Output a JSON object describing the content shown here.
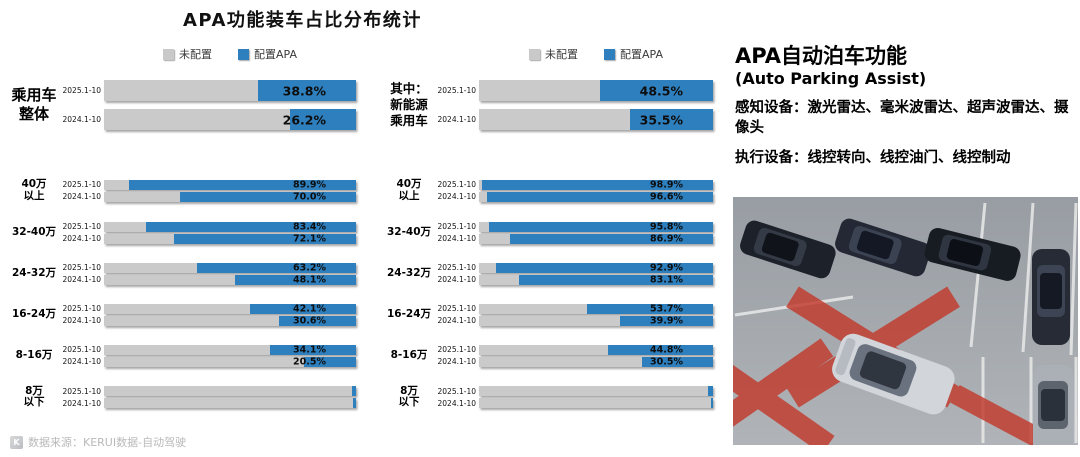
{
  "title": "APA功能装车占比分布统计",
  "colors": {
    "apa_blue": "#2e7fbe",
    "not_equipped_gray": "#c9c9c9"
  },
  "info_panel": {
    "title": "APA自动泊车功能",
    "subtitle": "(Auto Parking Assist)",
    "perception": "感知设备：激光雷达、毫米波雷达、超声波雷达、摄像头",
    "actuation": "执行设备：线控转向、线控油门、线控制动"
  },
  "footer": {
    "source": "数据来源：KERUI数据-自动驾驶",
    "logo": "K"
  },
  "chart_data": [
    {
      "type": "bar",
      "orientation": "horizontal-stacked",
      "unit": "%",
      "x_range": [
        0,
        100
      ],
      "legend": [
        "未配置",
        "配置APA"
      ],
      "overall": {
        "label": "乘用车整体",
        "label_lines": [
          "乘用车",
          "整体"
        ],
        "rows": [
          {
            "period": "2025.1-10",
            "value": 38.8,
            "label": "38.8%"
          },
          {
            "period": "2024.1-10",
            "value": 26.2,
            "label": "26.2%"
          }
        ]
      },
      "segments": [
        {
          "label": "40万以上",
          "label_lines": [
            "40万",
            "以上"
          ],
          "rows": [
            {
              "period": "2025.1-10",
              "value": 89.9,
              "label": "89.9%"
            },
            {
              "period": "2024.1-10",
              "value": 70.0,
              "label": "70.0%"
            }
          ]
        },
        {
          "label": "32-40万",
          "label_lines": [
            "32-40万"
          ],
          "rows": [
            {
              "period": "2025.1-10",
              "value": 83.4,
              "label": "83.4%"
            },
            {
              "period": "2024.1-10",
              "value": 72.1,
              "label": "72.1%"
            }
          ]
        },
        {
          "label": "24-32万",
          "label_lines": [
            "24-32万"
          ],
          "rows": [
            {
              "period": "2025.1-10",
              "value": 63.2,
              "label": "63.2%"
            },
            {
              "period": "2024.1-10",
              "value": 48.1,
              "label": "48.1%"
            }
          ]
        },
        {
          "label": "16-24万",
          "label_lines": [
            "16-24万"
          ],
          "rows": [
            {
              "period": "2025.1-10",
              "value": 42.1,
              "label": "42.1%"
            },
            {
              "period": "2024.1-10",
              "value": 30.6,
              "label": "30.6%"
            }
          ]
        },
        {
          "label": "8-16万",
          "label_lines": [
            "8-16万"
          ],
          "rows": [
            {
              "period": "2025.1-10",
              "value": 34.1,
              "label": "34.1%"
            },
            {
              "period": "2024.1-10",
              "value": 20.5,
              "label": "20.5%"
            }
          ]
        },
        {
          "label": "8万以下",
          "label_lines": [
            "8万",
            "以下"
          ],
          "rows": [
            {
              "period": "2025.1-10",
              "value": 1.5,
              "label": ""
            },
            {
              "period": "2024.1-10",
              "value": 1.0,
              "label": ""
            }
          ]
        }
      ]
    },
    {
      "type": "bar",
      "orientation": "horizontal-stacked",
      "unit": "%",
      "x_range": [
        0,
        100
      ],
      "legend": [
        "未配置",
        "配置APA"
      ],
      "overall": {
        "label": "其中：新能源乘用车",
        "label_lines": [
          "其中：",
          "新能源",
          "乘用车"
        ],
        "rows": [
          {
            "period": "2025.1-10",
            "value": 48.5,
            "label": "48.5%"
          },
          {
            "period": "2024.1-10",
            "value": 35.5,
            "label": "35.5%"
          }
        ]
      },
      "segments": [
        {
          "label": "40万以上",
          "label_lines": [
            "40万",
            "以上"
          ],
          "rows": [
            {
              "period": "2025.1-10",
              "value": 98.9,
              "label": "98.9%"
            },
            {
              "period": "2024.1-10",
              "value": 96.6,
              "label": "96.6%"
            }
          ]
        },
        {
          "label": "32-40万",
          "label_lines": [
            "32-40万"
          ],
          "rows": [
            {
              "period": "2025.1-10",
              "value": 95.8,
              "label": "95.8%"
            },
            {
              "period": "2024.1-10",
              "value": 86.9,
              "label": "86.9%"
            }
          ]
        },
        {
          "label": "24-32万",
          "label_lines": [
            "24-32万"
          ],
          "rows": [
            {
              "period": "2025.1-10",
              "value": 92.9,
              "label": "92.9%"
            },
            {
              "period": "2024.1-10",
              "value": 83.1,
              "label": "83.1%"
            }
          ]
        },
        {
          "label": "16-24万",
          "label_lines": [
            "16-24万"
          ],
          "rows": [
            {
              "period": "2025.1-10",
              "value": 53.7,
              "label": "53.7%"
            },
            {
              "period": "2024.1-10",
              "value": 39.9,
              "label": "39.9%"
            }
          ]
        },
        {
          "label": "8-16万",
          "label_lines": [
            "8-16万"
          ],
          "rows": [
            {
              "period": "2025.1-10",
              "value": 44.8,
              "label": "44.8%"
            },
            {
              "period": "2024.1-10",
              "value": 30.5,
              "label": "30.5%"
            }
          ]
        },
        {
          "label": "8万以下",
          "label_lines": [
            "8万",
            "以下"
          ],
          "rows": [
            {
              "period": "2025.1-10",
              "value": 2.0,
              "label": ""
            },
            {
              "period": "2024.1-10",
              "value": 1.0,
              "label": ""
            }
          ]
        }
      ]
    }
  ]
}
